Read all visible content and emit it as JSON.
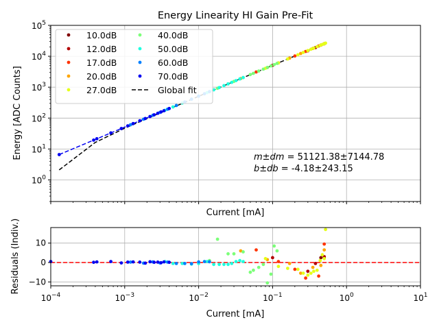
{
  "chart_data": [
    {
      "type": "scatter",
      "title": "Energy Linearity HI Gain Pre-Fit",
      "xlabel": "Current [mA]",
      "ylabel": "Energy [ADC Counts]",
      "xscale": "log",
      "yscale": "log",
      "xlim": [
        0.0001,
        10
      ],
      "ylim": [
        0.2,
        100000
      ],
      "x_tick_labels_shown": false,
      "y_ticks": [
        {
          "value": 1,
          "base": "10",
          "exp": "0"
        },
        {
          "value": 10,
          "base": "10",
          "exp": "1"
        },
        {
          "value": 100,
          "base": "10",
          "exp": "2"
        },
        {
          "value": 1000,
          "base": "10",
          "exp": "3"
        },
        {
          "value": 10000,
          "base": "10",
          "exp": "4"
        },
        {
          "value": 100000,
          "base": "10",
          "exp": "5"
        }
      ],
      "grid": true,
      "legend_position": "upper-left",
      "legend_columns": 2,
      "annotations": [
        {
          "math": "m±dm",
          "text": " = 51121.38±7144.78"
        },
        {
          "math": "b±db",
          "text": " = -4.18±243.15"
        }
      ],
      "series": [
        {
          "name": "10.0dB",
          "color": "#800000",
          "points": [
            [
              0.45,
              23000
            ],
            [
              0.5,
              25500
            ]
          ]
        },
        {
          "name": "12.0dB",
          "color": "#b30000",
          "points": [
            [
              0.1,
              5100
            ],
            [
              0.3,
              15000
            ],
            [
              0.38,
              19000
            ],
            [
              0.5,
              25500
            ]
          ]
        },
        {
          "name": "17.0dB",
          "color": "#ff3300",
          "points": [
            [
              0.06,
              3100
            ],
            [
              0.12,
              6100
            ],
            [
              0.2,
              10200
            ],
            [
              0.28,
              14300
            ],
            [
              0.42,
              21500
            ],
            [
              0.5,
              25500
            ]
          ]
        },
        {
          "name": "20.0dB",
          "color": "#ffa500",
          "points": [
            [
              0.037,
              1900
            ],
            [
              0.085,
              4300
            ],
            [
              0.17,
              8700
            ],
            [
              0.24,
              12300
            ],
            [
              0.35,
              17900
            ],
            [
              0.45,
              23000
            ],
            [
              0.5,
              25500
            ]
          ]
        },
        {
          "name": "27.0dB",
          "color": "#e5ff1a",
          "points": [
            [
              0.08,
              4100
            ],
            [
              0.12,
              6100
            ],
            [
              0.16,
              8200
            ],
            [
              0.22,
              11200
            ],
            [
              0.26,
              13300
            ],
            [
              0.3,
              15300
            ],
            [
              0.33,
              16900
            ],
            [
              0.36,
              18400
            ],
            [
              0.4,
              20400
            ],
            [
              0.44,
              22500
            ],
            [
              0.47,
              24000
            ],
            [
              0.5,
              25500
            ],
            [
              0.52,
              26600
            ]
          ]
        },
        {
          "name": "40.0dB",
          "color": "#7cff79",
          "points": [
            [
              0.014,
              715
            ],
            [
              0.018,
              920
            ],
            [
              0.025,
              1280
            ],
            [
              0.03,
              1535
            ],
            [
              0.04,
              2045
            ],
            [
              0.05,
              2560
            ],
            [
              0.055,
              2810
            ],
            [
              0.065,
              3320
            ],
            [
              0.075,
              3830
            ],
            [
              0.085,
              4350
            ],
            [
              0.095,
              4860
            ],
            [
              0.105,
              5370
            ],
            [
              0.115,
              5880
            ]
          ]
        },
        {
          "name": "50.0dB",
          "color": "#1effe0",
          "points": [
            [
              0.0035,
              179
            ],
            [
              0.0045,
              230
            ],
            [
              0.006,
              307
            ],
            [
              0.008,
              409
            ],
            [
              0.01,
              511
            ],
            [
              0.013,
              664
            ],
            [
              0.016,
              818
            ],
            [
              0.019,
              971
            ],
            [
              0.022,
              1125
            ],
            [
              0.025,
              1278
            ],
            [
              0.028,
              1431
            ],
            [
              0.032,
              1636
            ],
            [
              0.036,
              1840
            ],
            [
              0.04,
              2045
            ]
          ]
        },
        {
          "name": "60.0dB",
          "color": "#0080ff",
          "points": [
            [
              0.0012,
              61
            ],
            [
              0.0018,
              92
            ],
            [
              0.0024,
              123
            ],
            [
              0.003,
              153
            ],
            [
              0.0038,
              194
            ],
            [
              0.005,
              256
            ],
            [
              0.0065,
              332
            ],
            [
              0.008,
              409
            ],
            [
              0.01,
              511
            ],
            [
              0.012,
              613
            ],
            [
              0.014,
              716
            ]
          ]
        },
        {
          "name": "70.0dB",
          "color": "#0000f1",
          "points": [
            [
              0.00013,
              6.6
            ],
            [
              0.00038,
              19.4
            ],
            [
              0.00042,
              21.5
            ],
            [
              0.00065,
              33.2
            ],
            [
              0.0009,
              46
            ],
            [
              0.0011,
              56.2
            ],
            [
              0.0013,
              66.5
            ],
            [
              0.0016,
              81.8
            ],
            [
              0.0019,
              97.1
            ],
            [
              0.0022,
              112.5
            ],
            [
              0.0025,
              127.8
            ],
            [
              0.0028,
              143.1
            ],
            [
              0.0031,
              158.5
            ],
            [
              0.0034,
              173.8
            ],
            [
              0.004,
              204.5
            ]
          ]
        }
      ],
      "lines": [
        {
          "name": "Global fit",
          "style": "dashed",
          "color": "#000000",
          "x": [
            0.00013,
            0.0004,
            0.001,
            0.01,
            0.1,
            0.52
          ],
          "y": [
            2.1,
            16.3,
            46.9,
            507,
            5108,
            26579
          ]
        },
        {
          "name": "",
          "style": "dashed",
          "color": "#0000f1",
          "x": [
            0.00013,
            0.004
          ],
          "y": [
            6.6,
            204.5
          ]
        }
      ]
    },
    {
      "type": "scatter",
      "xlabel": "Current [mA]",
      "ylabel": "Residuals (Indiv.)",
      "xscale": "log",
      "xlim": [
        0.0001,
        10
      ],
      "ylim": [
        -12,
        18
      ],
      "x_ticks": [
        {
          "value": 0.0001,
          "base": "10",
          "exp": "−4"
        },
        {
          "value": 0.001,
          "base": "10",
          "exp": "−3"
        },
        {
          "value": 0.01,
          "base": "10",
          "exp": "−2"
        },
        {
          "value": 0.1,
          "base": "10",
          "exp": "−1"
        },
        {
          "value": 1,
          "base": "10",
          "exp": "0"
        },
        {
          "value": 10,
          "base": "10",
          "exp": "1"
        }
      ],
      "y_ticks": [
        {
          "value": -10,
          "label": "−10"
        },
        {
          "value": 0,
          "label": "0"
        },
        {
          "value": 10,
          "label": "10"
        }
      ],
      "grid": true,
      "zero_line": {
        "value": 0,
        "style": "dashed",
        "color": "#ff0000"
      },
      "series": [
        {
          "name": "10.0dB",
          "color": "#800000",
          "points": [
            [
              0.45,
              2.5
            ],
            [
              0.5,
              2.5
            ]
          ]
        },
        {
          "name": "12.0dB",
          "color": "#b30000",
          "points": [
            [
              0.1,
              2.5
            ],
            [
              0.3,
              -4.5
            ],
            [
              0.38,
              -0.5
            ],
            [
              0.5,
              3
            ]
          ]
        },
        {
          "name": "17.0dB",
          "color": "#ff3300",
          "points": [
            [
              0.06,
              6.5
            ],
            [
              0.12,
              0.5
            ],
            [
              0.2,
              -3.5
            ],
            [
              0.28,
              -8
            ],
            [
              0.42,
              -7
            ],
            [
              0.5,
              9.5
            ]
          ]
        },
        {
          "name": "20.0dB",
          "color": "#ffa500",
          "points": [
            [
              0.037,
              6
            ],
            [
              0.085,
              1.5
            ],
            [
              0.17,
              -0.5
            ],
            [
              0.24,
              -5.5
            ],
            [
              0.35,
              -2.5
            ],
            [
              0.45,
              -1.5
            ],
            [
              0.5,
              6.5
            ]
          ]
        },
        {
          "name": "27.0dB",
          "color": "#e5ff1a",
          "points": [
            [
              0.08,
              2
            ],
            [
              0.12,
              -2
            ],
            [
              0.16,
              -3
            ],
            [
              0.22,
              -3.5
            ],
            [
              0.26,
              -5.5
            ],
            [
              0.3,
              -6.5
            ],
            [
              0.33,
              -5.5
            ],
            [
              0.36,
              -4.5
            ],
            [
              0.4,
              -4
            ],
            [
              0.44,
              1
            ],
            [
              0.47,
              4
            ],
            [
              0.5,
              2
            ],
            [
              0.52,
              17
            ]
          ]
        },
        {
          "name": "40.0dB",
          "color": "#7cff79",
          "points": [
            [
              0.014,
              1
            ],
            [
              0.018,
              12
            ],
            [
              0.025,
              4.5
            ],
            [
              0.03,
              4.5
            ],
            [
              0.04,
              5.5
            ],
            [
              0.05,
              -5
            ],
            [
              0.055,
              -4
            ],
            [
              0.065,
              -2.5
            ],
            [
              0.075,
              -1
            ],
            [
              0.085,
              -10.5
            ],
            [
              0.095,
              -6
            ],
            [
              0.105,
              8.5
            ],
            [
              0.115,
              6
            ]
          ]
        },
        {
          "name": "50.0dB",
          "color": "#1effe0",
          "points": [
            [
              0.0035,
              0.5
            ],
            [
              0.0045,
              -0.5
            ],
            [
              0.006,
              -0.5
            ],
            [
              0.008,
              -0.8
            ],
            [
              0.01,
              -0.5
            ],
            [
              0.013,
              0.5
            ],
            [
              0.016,
              -1
            ],
            [
              0.019,
              -1
            ],
            [
              0.022,
              -1
            ],
            [
              0.025,
              -1
            ],
            [
              0.028,
              -0.5
            ],
            [
              0.032,
              0.5
            ],
            [
              0.036,
              1
            ],
            [
              0.04,
              0.5
            ]
          ]
        },
        {
          "name": "60.0dB",
          "color": "#0080ff",
          "points": [
            [
              0.0012,
              0.2
            ],
            [
              0.0018,
              -0.3
            ],
            [
              0.0024,
              0.3
            ],
            [
              0.003,
              -0.2
            ],
            [
              0.0038,
              0.2
            ],
            [
              0.005,
              -0.5
            ],
            [
              0.0065,
              -0.5
            ],
            [
              0.008,
              -0.6
            ],
            [
              0.01,
              0.3
            ],
            [
              0.012,
              0.5
            ],
            [
              0.014,
              0.4
            ]
          ]
        },
        {
          "name": "70.0dB",
          "color": "#0000f1",
          "points": [
            [
              0.0001,
              0.5
            ],
            [
              0.00038,
              0.1
            ],
            [
              0.00042,
              0.3
            ],
            [
              0.00065,
              0.5
            ],
            [
              0.0009,
              -0.2
            ],
            [
              0.0011,
              0.2
            ],
            [
              0.0013,
              0.3
            ],
            [
              0.0016,
              0.2
            ],
            [
              0.0019,
              -0.3
            ],
            [
              0.0022,
              0.4
            ],
            [
              0.0025,
              0.1
            ],
            [
              0.0028,
              0.2
            ],
            [
              0.0031,
              -0.1
            ],
            [
              0.0034,
              0.3
            ],
            [
              0.004,
              0.1
            ]
          ]
        }
      ]
    }
  ]
}
